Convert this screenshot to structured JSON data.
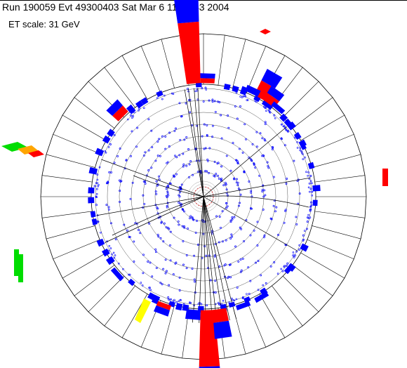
{
  "header": {
    "run_info": "Run 190059 Evt 49300403 Sat Mar  6 11:15:43 2004",
    "et_scale": "ET scale: 31 GeV"
  },
  "colors": {
    "em": "#ff0000",
    "had": "#0000ff",
    "track": "#000000",
    "hit": "#0000ff",
    "muon": "#00dd00",
    "plug": "#ffa500",
    "highlight": "#ffff00"
  },
  "display": {
    "tower_segments": 48,
    "tracker_layers": 8,
    "calorimeter_towers": [
      {
        "phi_deg": 95,
        "em": 0.38,
        "had": 0.18
      },
      {
        "phi_deg": 88,
        "em": 0.03,
        "had": 0.03
      },
      {
        "phi_deg": 60,
        "em": 0.1,
        "had": 0.08
      },
      {
        "phi_deg": 55,
        "em": 0.05,
        "had": 0.05
      },
      {
        "phi_deg": 65,
        "em": 0.0,
        "had": 0.04
      },
      {
        "phi_deg": 50,
        "em": 0.0,
        "had": 0.03
      },
      {
        "phi_deg": 135,
        "em": 0.05,
        "had": 0.05
      },
      {
        "phi_deg": 272,
        "em": 0.35,
        "had": 0.1
      },
      {
        "phi_deg": 278,
        "em": 0.08,
        "had": 0.1
      },
      {
        "phi_deg": 265,
        "em": 0.0,
        "had": 0.06
      },
      {
        "phi_deg": 250,
        "em": 0.03,
        "had": 0.04
      },
      {
        "phi_deg": 290,
        "em": 0.0,
        "had": 0.03
      },
      {
        "phi_deg": 222,
        "em": 0.0,
        "had": 0.03
      },
      {
        "phi_deg": 300,
        "em": 0.0,
        "had": 0.03
      }
    ]
  }
}
